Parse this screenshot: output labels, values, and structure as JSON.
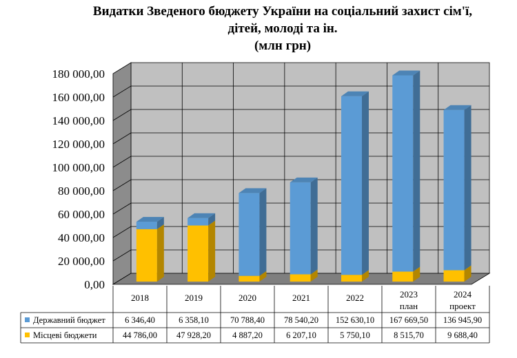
{
  "chart_data": {
    "type": "bar",
    "stacked": true,
    "three_d": true,
    "title": "Видатки Зведеного бюджету України на соціальний захист сім'ї, дітей, молоді та ін.",
    "title_lines": [
      "Видатки Зведеного бюджету України на соціальний захист сім'ї,",
      "дітей, молоді та ін.",
      "(млн грн)"
    ],
    "unit": "(млн грн)",
    "categories": [
      "2018",
      "2019",
      "2020",
      "2021",
      "2022",
      "2023 план",
      "2024 проект"
    ],
    "category_lines": [
      [
        "2018"
      ],
      [
        "2019"
      ],
      [
        "2020"
      ],
      [
        "2021"
      ],
      [
        "2022"
      ],
      [
        "2023",
        "план"
      ],
      [
        "2024",
        "проект"
      ]
    ],
    "ylim": [
      0,
      180000
    ],
    "y_ticks": [
      "0,00",
      "20 000,00",
      "40 000,00",
      "60 000,00",
      "80 000,00",
      "100 000,00",
      "120 000,00",
      "140 000,00",
      "160 000,00",
      "180 000,00"
    ],
    "grid": true,
    "legend": "data-table",
    "series": [
      {
        "name": "Державний бюджет",
        "color": "#5b9bd5",
        "values": [
          6346.4,
          6358.1,
          70788.4,
          78540.2,
          152630.1,
          167669.5,
          136945.9
        ],
        "labels": [
          "6 346,40",
          "6 358,10",
          "70 788,40",
          "78 540,20",
          "152 630,10",
          "167 669,50",
          "136 945,90"
        ]
      },
      {
        "name": "Місцеві бюджети",
        "color": "#ffc000",
        "values": [
          44786.0,
          47928.2,
          4887.2,
          6207.1,
          5750.1,
          8515.7,
          9688.4
        ],
        "labels": [
          "44 786,00",
          "47 928,20",
          "4 887,20",
          "6 207,10",
          "5 750,10",
          "8 515,70",
          "9 688,40"
        ]
      }
    ],
    "colors": {
      "wall": "#c0c0c0",
      "side_wall": "#8c8c8c",
      "floor": "#7f7f7f",
      "grid": "#000000"
    }
  }
}
